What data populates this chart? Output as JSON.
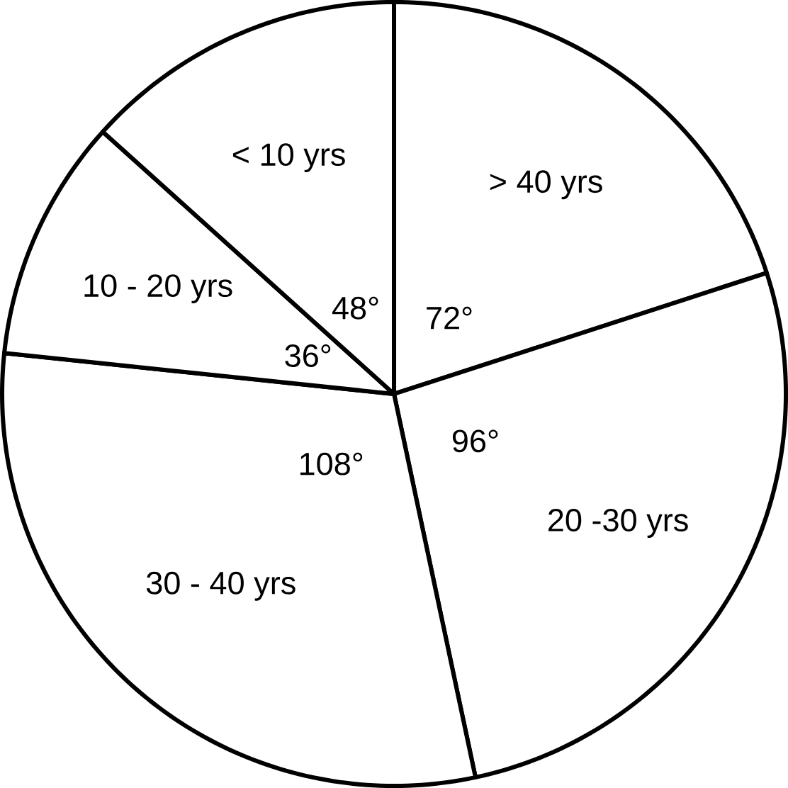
{
  "chart_data": {
    "type": "pie",
    "categories": [
      "> 40 yrs",
      "20 -30 yrs",
      "30 - 40 yrs",
      "10 - 20 yrs",
      "< 10 yrs"
    ],
    "values": [
      72,
      96,
      108,
      36,
      48
    ],
    "value_labels": [
      "72°",
      "96°",
      "108°",
      "36°",
      "48°"
    ],
    "colors": [
      "#ffffff",
      "#ffffff",
      "#ffffff",
      "#ffffff",
      "#ffffff"
    ]
  }
}
